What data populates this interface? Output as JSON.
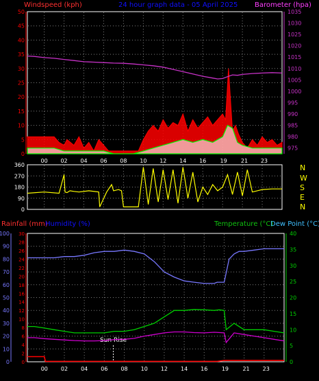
{
  "labels": {
    "windspeed_title": "Windspeed (kph)",
    "graph_title": "24 hour graph data - 05 April 2025",
    "barometer_title": "Barometer (hpa)",
    "rainfall_title": "Rainfall (mm)",
    "humidity_title": "Humidity (%)",
    "temperature_title": "Temperature (°C)",
    "dewpoint_title": "Dew Point (°C)",
    "sunrise_label": "Sun Rise",
    "compass": [
      "N",
      "W",
      "S",
      "E",
      "N"
    ]
  },
  "colors": {
    "background": "#000000",
    "panel_border": "#ffffff",
    "grid": "#7f7f7f",
    "windspeed": "#ff0000",
    "wind_average": "#00ff00",
    "wind_gust_fill": "#ffffff",
    "barometer": "#c832c8",
    "direction": "#ffff00",
    "rainfall": "#ff0000",
    "humidity": "#7878ff",
    "temperature": "#00d000",
    "dewpoint": "#d000d0",
    "title_blue": "#1010ff",
    "title_red": "#ff3030",
    "title_magenta": "#ff40ff",
    "title_green": "#10c010",
    "title_cyan": "#40c0ff",
    "tick_white": "#ffffff"
  },
  "chart_data": [
    {
      "type": "line",
      "title": "24 hour graph data - 05 April 2025",
      "x_ticks": [
        "00",
        "02",
        "04",
        "06",
        "08",
        "10",
        "12",
        "14",
        "16",
        "19",
        "21",
        "23"
      ],
      "xlim_hours": [
        -1.7,
        24.0
      ],
      "grid": true,
      "left_axis": {
        "label": "Windspeed (kph)",
        "ylim": [
          0,
          50
        ],
        "ticks": [
          0,
          5,
          10,
          15,
          20,
          25,
          30,
          35,
          40,
          45,
          50
        ]
      },
      "right_axis": {
        "label": "Barometer (hpa)",
        "ylim": [
          972.5,
          1035
        ],
        "ticks": [
          975,
          980,
          985,
          990,
          995,
          1000,
          1005,
          1010,
          1015,
          1020,
          1025,
          1030,
          1035
        ]
      },
      "series": [
        {
          "name": "Windspeed (kph)",
          "axis": "left",
          "x": [
            -1.7,
            -1.0,
            -0.5,
            0,
            1,
            1.5,
            2,
            2.3,
            3,
            3.5,
            4,
            4.5,
            5,
            5.5,
            6,
            6.5,
            7,
            7.5,
            8,
            9,
            9.5,
            10,
            10.5,
            11,
            11.5,
            12,
            12.5,
            13,
            13.5,
            14,
            14.5,
            15,
            15.5,
            16,
            16.5,
            17,
            17.5,
            18,
            18.3,
            18.6,
            19,
            19.3,
            19.6,
            20,
            20.5,
            21,
            21.5,
            22,
            22.5,
            23,
            23.5,
            24
          ],
          "values": [
            6,
            6,
            6,
            6,
            6,
            4,
            3,
            5,
            3,
            6,
            2,
            4,
            1,
            5,
            3,
            1,
            1,
            1,
            1,
            1,
            1,
            5,
            8,
            10,
            8,
            12,
            9,
            11,
            10,
            14,
            8,
            12,
            9,
            11,
            13,
            10,
            12,
            14,
            12,
            30,
            8,
            10,
            7,
            4,
            2,
            5,
            3,
            6,
            4,
            5,
            3,
            4
          ]
        },
        {
          "name": "Wind average",
          "axis": "left",
          "x": [
            -1.7,
            -1.0,
            0,
            1,
            2,
            3,
            4,
            5,
            6,
            7,
            8,
            9,
            10,
            11,
            12,
            13,
            14,
            15,
            16,
            17,
            18,
            18.5,
            19,
            19.5,
            20,
            21,
            22,
            23,
            24
          ],
          "values": [
            2,
            2,
            2,
            2,
            1,
            1,
            1,
            1,
            1,
            0,
            0,
            0,
            1,
            2,
            3,
            4,
            5,
            4,
            5,
            4,
            6,
            10,
            9,
            4,
            3,
            2,
            2,
            2,
            2
          ]
        },
        {
          "name": "Barometer (hpa)",
          "axis": "right",
          "x": [
            -1.7,
            -1,
            0,
            1,
            2,
            3,
            4,
            5,
            6,
            7,
            8,
            9,
            10,
            11,
            12,
            13,
            14,
            15,
            16,
            17,
            17.5,
            18,
            18.5,
            19,
            19.5,
            20,
            21,
            22,
            23,
            24
          ],
          "values": [
            1015.5,
            1015.3,
            1014.8,
            1014.5,
            1014.0,
            1013.5,
            1013.0,
            1012.8,
            1012.6,
            1012.4,
            1012.3,
            1012.0,
            1011.6,
            1011.2,
            1010.6,
            1009.6,
            1008.6,
            1007.6,
            1006.6,
            1005.8,
            1005.4,
            1005.6,
            1006.4,
            1007.2,
            1007.0,
            1007.4,
            1007.8,
            1008.0,
            1008.2,
            1008.0
          ]
        }
      ]
    },
    {
      "type": "line",
      "x_ticks": [],
      "xlim_hours": [
        -1.7,
        24.0
      ],
      "grid": true,
      "left_axis": {
        "label": "",
        "ylim": [
          0,
          360
        ],
        "ticks": [
          0,
          90,
          180,
          270,
          360
        ]
      },
      "series": [
        {
          "name": "Wind direction",
          "axis": "left",
          "x": [
            -1.7,
            0,
            1.5,
            2.0,
            2.1,
            2.3,
            2.6,
            3,
            3.5,
            4.5,
            5.5,
            5.6,
            6.3,
            6.8,
            7.0,
            7.5,
            7.8,
            8,
            9.5,
            10,
            10.5,
            11,
            11.5,
            12,
            12.5,
            13,
            13.5,
            14,
            14.5,
            15,
            15.5,
            16,
            16.5,
            17,
            17.5,
            18,
            18.5,
            19,
            19.5,
            20,
            20.5,
            21,
            21.5,
            22,
            23,
            24
          ],
          "values": [
            130,
            140,
            130,
            280,
            140,
            135,
            150,
            145,
            140,
            150,
            140,
            20,
            140,
            200,
            150,
            160,
            150,
            20,
            20,
            340,
            40,
            330,
            60,
            320,
            80,
            320,
            50,
            340,
            90,
            300,
            60,
            180,
            120,
            200,
            150,
            180,
            280,
            120,
            300,
            110,
            320,
            140,
            150,
            160,
            165,
            165
          ]
        }
      ]
    },
    {
      "type": "line",
      "x_ticks": [
        "00",
        "02",
        "04",
        "06",
        "08",
        "10",
        "12",
        "14",
        "16",
        "19",
        "21",
        "23"
      ],
      "xlim_hours": [
        -1.7,
        24.0
      ],
      "grid": true,
      "left_axis": {
        "label": "Humidity (%)",
        "ylim": [
          0,
          100
        ],
        "ticks": [
          0,
          10,
          20,
          30,
          40,
          50,
          60,
          70,
          80,
          90,
          100
        ]
      },
      "left_axis_2": {
        "label": "Rainfall (mm)",
        "ylim": [
          0,
          30
        ],
        "ticks": [
          0,
          2,
          4,
          6,
          8,
          10,
          12,
          14,
          16,
          18,
          20,
          22,
          24,
          26,
          28,
          30
        ]
      },
      "right_axis": {
        "label": "Temperature (°C)",
        "ylim": [
          0,
          40
        ],
        "ticks": [
          0,
          5,
          10,
          15,
          20,
          25,
          30,
          35,
          40
        ]
      },
      "series": [
        {
          "name": "Humidity (%)",
          "axis": "left",
          "x": [
            -1.7,
            -1,
            0,
            1,
            2,
            3,
            4,
            5,
            6,
            7,
            8,
            9,
            10,
            11,
            12,
            13,
            14,
            15,
            16,
            17,
            17.3,
            18,
            18.5,
            19,
            19.5,
            20,
            21,
            22,
            23,
            24
          ],
          "values": [
            81,
            81,
            81,
            81,
            82,
            82,
            83,
            85,
            86,
            86,
            87,
            86,
            84,
            78,
            70,
            66,
            63,
            62,
            61,
            61,
            62,
            62,
            80,
            84,
            86,
            86,
            87,
            88,
            88,
            88
          ]
        },
        {
          "name": "Rainfall (mm)",
          "axis": "left2",
          "x": [
            -1.7,
            0,
            0.1,
            1,
            5,
            10,
            15,
            17.3,
            18,
            24
          ],
          "values": [
            1.2,
            1.2,
            0.1,
            0.1,
            0.1,
            0.1,
            0.1,
            0.1,
            0.3,
            0.3
          ]
        },
        {
          "name": "Temperature (°C)",
          "axis": "right",
          "x": [
            -1.7,
            -1,
            0,
            1,
            2,
            3,
            4,
            5,
            6,
            7,
            8,
            9,
            10,
            11,
            12,
            12.5,
            13,
            14,
            15,
            16,
            17,
            17.5,
            18,
            18.2,
            19,
            20,
            21,
            22,
            23,
            24
          ],
          "values": [
            11,
            11,
            10.5,
            10,
            9.5,
            9,
            9,
            9,
            9,
            9.5,
            9.5,
            10,
            11,
            12,
            14,
            15,
            16,
            16,
            16.3,
            16.2,
            16,
            16.2,
            16,
            10,
            12,
            10,
            10,
            10,
            9.5,
            9
          ]
        },
        {
          "name": "Dew Point (°C)",
          "axis": "right",
          "x": [
            -1.7,
            -1,
            0,
            1,
            2,
            3,
            4,
            5,
            6,
            7,
            8,
            9,
            10,
            11,
            12,
            13,
            14,
            15,
            16,
            17,
            18,
            18.2,
            19,
            20,
            21,
            22,
            23,
            24
          ],
          "values": [
            7.5,
            7.5,
            7.2,
            7,
            6.8,
            6.6,
            6.5,
            6.5,
            6.6,
            6.9,
            7.0,
            7.3,
            8.0,
            8.5,
            9.0,
            9.3,
            9.3,
            9.1,
            9.0,
            9.2,
            9.0,
            6.0,
            9.0,
            8.5,
            8.0,
            7.5,
            7.0,
            6.5
          ]
        }
      ],
      "annotations": [
        {
          "text": "Sun Rise",
          "x_hours": 6.9
        }
      ]
    }
  ]
}
